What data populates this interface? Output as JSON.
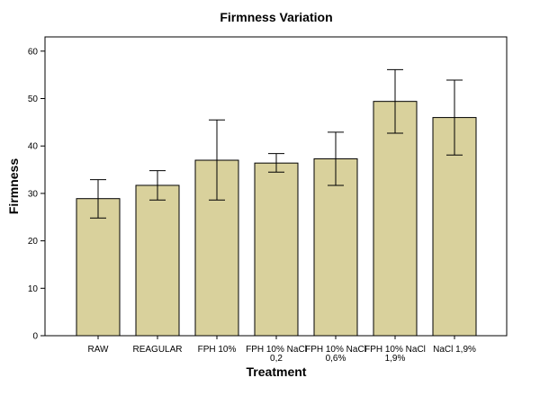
{
  "chart_data": {
    "type": "bar",
    "title": "Firmness Variation",
    "xlabel": "Treatment",
    "ylabel": "Firmness",
    "ylim": [
      0,
      63
    ],
    "yticks": [
      0,
      10,
      20,
      30,
      40,
      50,
      60
    ],
    "grid": false,
    "categories": [
      [
        "RAW"
      ],
      [
        "REAGULAR"
      ],
      [
        "FPH 10%"
      ],
      [
        "FPH 10% NaCl",
        "0,2"
      ],
      [
        "FPH 10% NaCl",
        "0,6%"
      ],
      [
        "FPH 10% NaCl",
        "1,9%"
      ],
      [
        "NaCl 1,9%"
      ]
    ],
    "values": [
      28.9,
      31.7,
      37.0,
      36.4,
      37.3,
      49.4,
      46.0
    ],
    "error_low": [
      24.8,
      28.6,
      28.6,
      34.5,
      31.7,
      42.7,
      38.1
    ],
    "error_high": [
      32.9,
      34.8,
      45.5,
      38.4,
      42.9,
      56.1,
      53.9
    ],
    "colors": {
      "bar_fill": "#d9d19c",
      "bar_stroke": "#000000",
      "plot_background": "#ffffff"
    }
  }
}
